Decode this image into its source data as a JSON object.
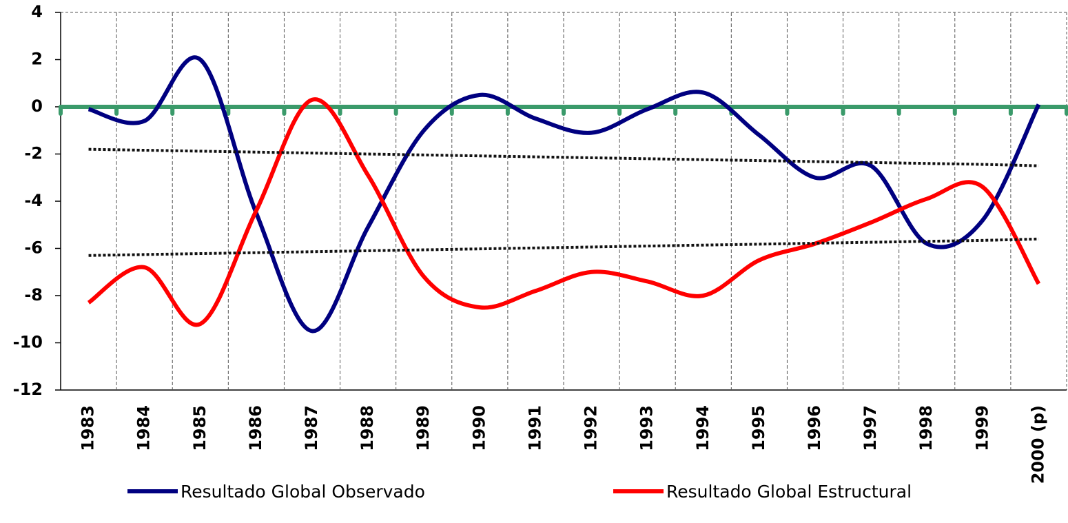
{
  "chart_data": {
    "type": "line",
    "categories": [
      "1983",
      "1984",
      "1985",
      "1986",
      "1987",
      "1988",
      "1989",
      "1990",
      "1991",
      "1992",
      "1993",
      "1994",
      "1995",
      "1996",
      "1997",
      "1998",
      "1999",
      "2000 (p)"
    ],
    "series": [
      {
        "name": "Resultado Global  Observado",
        "color": "#000080",
        "values": [
          -0.1,
          -0.6,
          2.0,
          -4.5,
          -9.5,
          -5.1,
          -1.0,
          0.5,
          -0.5,
          -1.1,
          -0.1,
          0.6,
          -1.2,
          -3.0,
          -2.5,
          -5.8,
          -4.8,
          0.1
        ]
      },
      {
        "name": "Resultado Global Estructural",
        "color": "#ff0000",
        "values": [
          -8.3,
          -6.8,
          -9.2,
          -4.4,
          0.3,
          -2.9,
          -7.2,
          -8.5,
          -7.8,
          -7.0,
          -7.4,
          -8.0,
          -6.5,
          -5.8,
          -4.9,
          -3.9,
          -3.4,
          -7.5
        ]
      },
      {
        "color": "#111111",
        "style": "dotted",
        "values": [
          -1.8,
          -1.84,
          -1.88,
          -1.92,
          -1.96,
          -2.0,
          -2.04,
          -2.08,
          -2.12,
          -2.16,
          -2.2,
          -2.24,
          -2.28,
          -2.32,
          -2.36,
          -2.4,
          -2.44,
          -2.5
        ]
      },
      {
        "color": "#111111",
        "style": "dotted",
        "values": [
          -6.3,
          -6.26,
          -6.22,
          -6.18,
          -6.14,
          -6.1,
          -6.06,
          -6.02,
          -5.98,
          -5.94,
          -5.9,
          -5.86,
          -5.82,
          -5.78,
          -5.74,
          -5.7,
          -5.66,
          -5.6
        ]
      }
    ],
    "ylim": [
      -12,
      4
    ],
    "yticks": [
      -12,
      -10,
      -8,
      -6,
      -4,
      -2,
      0,
      2,
      4
    ],
    "grid": "vertical-dashed",
    "zero_line_color": "#3a9a6a",
    "smooth": true,
    "legend": "bottom"
  }
}
